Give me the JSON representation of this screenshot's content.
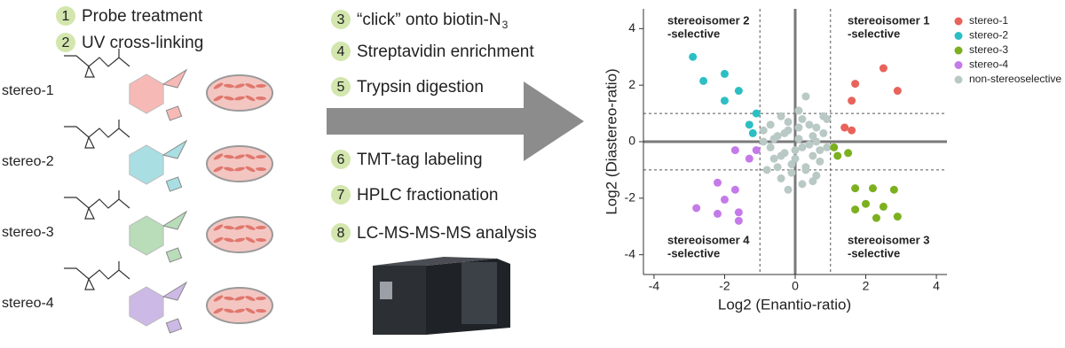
{
  "steps": [
    {
      "number": "1",
      "text": "Probe treatment"
    },
    {
      "number": "2",
      "text": "UV cross-linking"
    },
    {
      "number": "3",
      "text": "“click” onto biotin-N",
      "subscript": "3"
    },
    {
      "number": "4",
      "text": "Streptavidin enrichment"
    },
    {
      "number": "5",
      "text": "Trypsin digestion"
    },
    {
      "number": "6",
      "text": "TMT-tag labeling"
    },
    {
      "number": "7",
      "text": "HPLC fractionation"
    },
    {
      "number": "8",
      "text": "LC-MS-MS-MS analysis"
    }
  ],
  "samples": [
    {
      "label": "stereo-1",
      "color": "#f7b9b5"
    },
    {
      "label": "stereo-2",
      "color": "#a9dfe3"
    },
    {
      "label": "stereo-3",
      "color": "#b9dcb9"
    },
    {
      "label": "stereo-4",
      "color": "#cdb9e6"
    }
  ],
  "chart_data": {
    "type": "scatter",
    "xlabel": "Log2 (Enantio-ratio)",
    "ylabel": "Log2 (Diastereo-ratio)",
    "xlim": [
      -4.3,
      4.3
    ],
    "ylim": [
      -4.7,
      4.7
    ],
    "xticks": [
      -4,
      -2,
      0,
      2,
      4
    ],
    "yticks": [
      -4,
      -2,
      0,
      2,
      4
    ],
    "threshold_lines": {
      "x": [
        -1,
        1
      ],
      "y": [
        -1,
        1
      ]
    },
    "annotations": [
      {
        "text": "stereoisomer 2",
        "text2": "-selective"
      },
      {
        "text": "stereoisomer 1",
        "text2": "-selective"
      },
      {
        "text": "stereoisomer 4",
        "text2": "-selective"
      },
      {
        "text": "stereoisomer 3",
        "text2": "-selective"
      }
    ],
    "legend": "top-right",
    "series": [
      {
        "name": "stereo-1",
        "color": "#e8635a",
        "x": [
          2.5,
          1.7,
          2.9,
          1.6,
          1.4,
          1.6
        ],
        "y": [
          2.6,
          2.05,
          1.8,
          1.45,
          0.5,
          0.4
        ]
      },
      {
        "name": "stereo-2",
        "color": "#2bbfc4",
        "x": [
          -2.9,
          -2.0,
          -2.6,
          -1.6,
          -2.0,
          -1.1,
          -1.3,
          -1.2
        ],
        "y": [
          3.0,
          2.4,
          2.15,
          1.8,
          1.45,
          1.0,
          0.6,
          0.3
        ]
      },
      {
        "name": "stereo-3",
        "color": "#7cb01f",
        "x": [
          2.8,
          2.2,
          1.7,
          2.0,
          2.5,
          1.7,
          2.3,
          2.9,
          1.1,
          1.2,
          1.5
        ],
        "y": [
          -1.7,
          -1.65,
          -1.65,
          -2.2,
          -2.3,
          -2.4,
          -2.7,
          -2.65,
          -0.2,
          -0.5,
          -0.4
        ]
      },
      {
        "name": "stereo-4",
        "color": "#c47ae8",
        "x": [
          -2.2,
          -1.7,
          -2.0,
          -2.8,
          -2.2,
          -1.6,
          -1.6,
          -1.1,
          -1.7,
          -1.3
        ],
        "y": [
          -1.45,
          -1.7,
          -2.05,
          -2.35,
          -2.55,
          -2.5,
          -2.8,
          -0.3,
          -0.3,
          -0.6
        ]
      },
      {
        "name": "non-stereoselective",
        "color": "#b9c9c5",
        "x": [
          0.3,
          -0.4,
          0.2,
          -0.7,
          0.6,
          0.8,
          -0.2,
          0.1,
          -0.5,
          0.4,
          -0.9,
          0.9,
          0.0,
          -0.3,
          0.5,
          -0.6,
          0.7,
          -0.1,
          0.3,
          -0.8,
          0.6,
          -0.4,
          0.2,
          -0.2,
          0.8,
          -0.7,
          0.1,
          0.5,
          -0.5,
          0.4,
          -0.3,
          0.0,
          0.7,
          -0.9,
          0.9,
          -0.1,
          0.3,
          -0.6,
          0.6,
          0.2,
          -0.4,
          0.1,
          0.5,
          -0.2
        ],
        "y": [
          1.6,
          0.9,
          0.8,
          0.6,
          0.5,
          0.3,
          0.4,
          0.1,
          0.2,
          -0.1,
          0.0,
          -0.2,
          -0.3,
          -0.4,
          -0.5,
          -0.6,
          -0.7,
          -0.8,
          -0.9,
          -1.0,
          -1.2,
          -1.3,
          -1.5,
          0.7,
          0.9,
          -0.2,
          0.5,
          0.2,
          -0.9,
          0.6,
          0.3,
          -0.6,
          -0.3,
          0.4,
          0.8,
          -1.1,
          -1.0,
          0.1,
          0.0,
          -0.2,
          -0.5,
          1.1,
          -1.4,
          -1.7
        ]
      }
    ]
  }
}
